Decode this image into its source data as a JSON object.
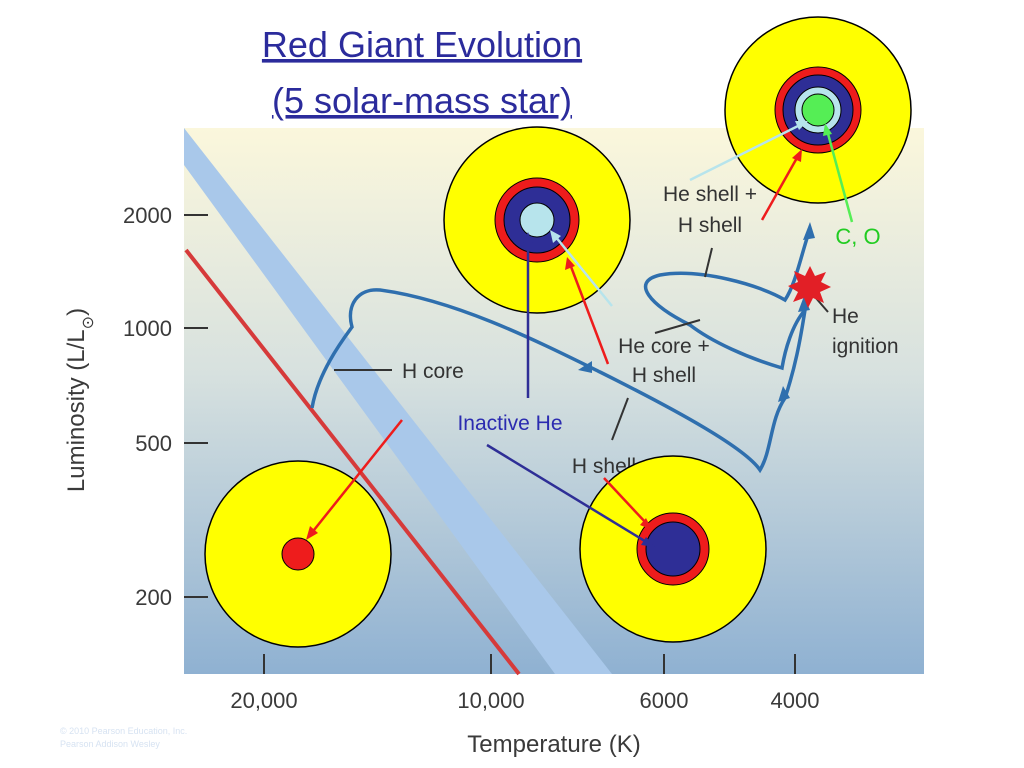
{
  "title": {
    "line1": "Red Giant Evolution",
    "line2": "(5 solar-mass star)"
  },
  "axes": {
    "y_label": "Luminosity (L/L",
    "y_label_sun_symbol": "⊙",
    "y_label_close": ")",
    "x_label": "Temperature (K)",
    "y_ticks": [
      "2000",
      "1000",
      "500",
      "200"
    ],
    "x_ticks": [
      "20,000",
      "10,000",
      "6000",
      "4000"
    ]
  },
  "labels": {
    "h_core": "H core",
    "he_core_h_shell_1": "He core +",
    "he_core_h_shell_2": "H shell",
    "he_shell_h_shell_1": "He shell +",
    "he_shell_h_shell_2": "H shell",
    "h_shell": "H shell",
    "inactive_he": "Inactive He",
    "c_o": "C, O",
    "he_ignition_1": "He",
    "he_ignition_2": "ignition"
  },
  "credit": {
    "line1": "© 2010 Pearson Education, Inc.",
    "line2": "Pearson Addison Wesley"
  },
  "colors": {
    "envelope": "#ffff00",
    "h_burning_shell": "#ee1c1c",
    "inactive_he_core": "#2e2e96",
    "he_burning_core": "#b7e4ec",
    "co_core": "#55ee55",
    "track": "#2f6fae",
    "main_sequence_band": "#a9c8ea",
    "main_sequence_line": "#d63a3a"
  }
}
